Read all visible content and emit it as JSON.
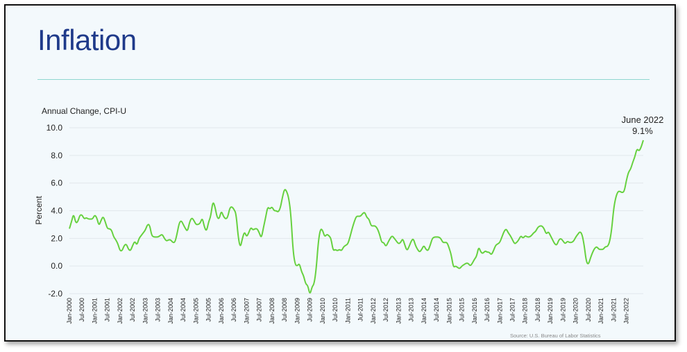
{
  "slide": {
    "title": "Inflation"
  },
  "chart_data": {
    "type": "line",
    "title": "Annual Change, CPI-U",
    "ylabel": "Percent",
    "xlabel": "",
    "ylim": [
      -2.0,
      10.0
    ],
    "yticks": [
      "10.0",
      "8.0",
      "6.0",
      "4.0",
      "2.0",
      "0.0",
      "-2.0"
    ],
    "grid": true,
    "x_tick_labels": [
      "Jan-2000",
      "Jul-2000",
      "Jan-2001",
      "Jul-2001",
      "Jan-2002",
      "Jul-2002",
      "Jan-2003",
      "Jul-2003",
      "Jan-2004",
      "Jul-2004",
      "Jan-2005",
      "Jul-2005",
      "Jan-2006",
      "Jul-2006",
      "Jan-2007",
      "Jul-2007",
      "Jan-2008",
      "Jul-2008",
      "Jan-2009",
      "Jul-2009",
      "Jan-2010",
      "Jul-2010",
      "Jan-2011",
      "Jul-2011",
      "Jan-2012",
      "Jul-2012",
      "Jan-2013",
      "Jul-2013",
      "Jan-2014",
      "Jul-2014",
      "Jan-2015",
      "Jul-2015",
      "Jan-2016",
      "Jul-2016",
      "Jan-2017",
      "Jul-2017",
      "Jan-2018",
      "Jul-2018",
      "Jan-2019",
      "Jul-2019",
      "Jan-2020",
      "Jul-2020",
      "Jan-2021",
      "Jul-2021",
      "Jan-2022"
    ],
    "series": [
      {
        "color": "#66d13f",
        "x_start": "Jan-2000",
        "x_end": "Jun-2022",
        "values": [
          2.7,
          3.2,
          3.8,
          3.1,
          3.2,
          3.7,
          3.7,
          3.4,
          3.5,
          3.4,
          3.4,
          3.4,
          3.7,
          3.5,
          2.9,
          3.3,
          3.6,
          3.2,
          2.7,
          2.7,
          2.6,
          2.1,
          1.9,
          1.6,
          1.1,
          1.1,
          1.5,
          1.6,
          1.2,
          1.1,
          1.5,
          1.8,
          1.5,
          2.0,
          2.2,
          2.4,
          2.6,
          3.0,
          3.0,
          2.2,
          2.1,
          2.1,
          2.1,
          2.2,
          2.3,
          2.0,
          1.8,
          1.9,
          1.9,
          1.7,
          1.7,
          2.3,
          3.1,
          3.3,
          3.0,
          2.7,
          2.5,
          3.2,
          3.5,
          3.3,
          3.0,
          3.0,
          3.1,
          3.5,
          2.8,
          2.5,
          3.2,
          3.6,
          4.7,
          4.3,
          3.5,
          3.4,
          4.0,
          3.6,
          3.4,
          3.5,
          4.2,
          4.3,
          4.1,
          3.8,
          2.1,
          1.3,
          2.0,
          2.5,
          2.1,
          2.4,
          2.8,
          2.6,
          2.7,
          2.7,
          2.4,
          2.0,
          2.8,
          3.5,
          4.3,
          4.1,
          4.3,
          4.0,
          4.0,
          3.9,
          4.2,
          5.0,
          5.6,
          5.4,
          4.9,
          3.7,
          1.1,
          0.1,
          0.0,
          0.2,
          -0.4,
          -0.7,
          -1.3,
          -1.4,
          -2.1,
          -1.5,
          -1.3,
          -0.2,
          1.8,
          2.7,
          2.6,
          2.1,
          2.3,
          2.2,
          2.0,
          1.1,
          1.2,
          1.1,
          1.2,
          1.1,
          1.4,
          1.5,
          1.6,
          2.1,
          2.7,
          3.2,
          3.6,
          3.6,
          3.6,
          3.8,
          3.9,
          3.5,
          3.4,
          2.9,
          2.9,
          2.9,
          2.7,
          2.3,
          1.7,
          1.7,
          1.4,
          1.7,
          2.0,
          2.2,
          2.0,
          1.8,
          1.6,
          1.7,
          2.0,
          1.5,
          1.1,
          1.4,
          1.8,
          2.0,
          1.5,
          1.2,
          1.0,
          1.2,
          1.5,
          1.2,
          1.1,
          1.5,
          2.0,
          2.1,
          2.1,
          2.1,
          2.0,
          1.7,
          1.7,
          1.7,
          1.3,
          0.8,
          -0.1,
          0.0,
          -0.1,
          -0.2,
          0.0,
          0.1,
          0.2,
          0.2,
          0.0,
          0.2,
          0.5,
          0.7,
          1.4,
          1.0,
          0.9,
          1.1,
          1.0,
          1.0,
          0.8,
          1.1,
          1.5,
          1.6,
          1.7,
          2.1,
          2.5,
          2.7,
          2.4,
          2.2,
          1.9,
          1.6,
          1.7,
          1.9,
          2.2,
          2.0,
          2.2,
          2.1,
          2.1,
          2.2,
          2.4,
          2.5,
          2.8,
          2.9,
          2.9,
          2.7,
          2.3,
          2.5,
          2.2,
          1.9,
          1.6,
          1.5,
          1.9,
          2.0,
          1.8,
          1.6,
          1.8,
          1.7,
          1.7,
          1.8,
          2.1,
          2.3,
          2.5,
          2.3,
          1.5,
          0.3,
          0.1,
          0.6,
          1.0,
          1.3,
          1.4,
          1.2,
          1.2,
          1.2,
          1.4,
          1.4,
          1.7,
          2.6,
          4.2,
          5.0,
          5.4,
          5.4,
          5.3,
          5.4,
          6.2,
          6.8,
          7.0,
          7.5,
          7.9,
          8.5,
          8.3,
          8.6,
          9.1
        ]
      }
    ],
    "annotations": [
      {
        "text": "June 2022",
        "at": "Jun-2022"
      },
      {
        "text": "9.1%",
        "at": "Jun-2022"
      }
    ],
    "source": "Source: U.S. Bureau of Labor Statistics"
  }
}
